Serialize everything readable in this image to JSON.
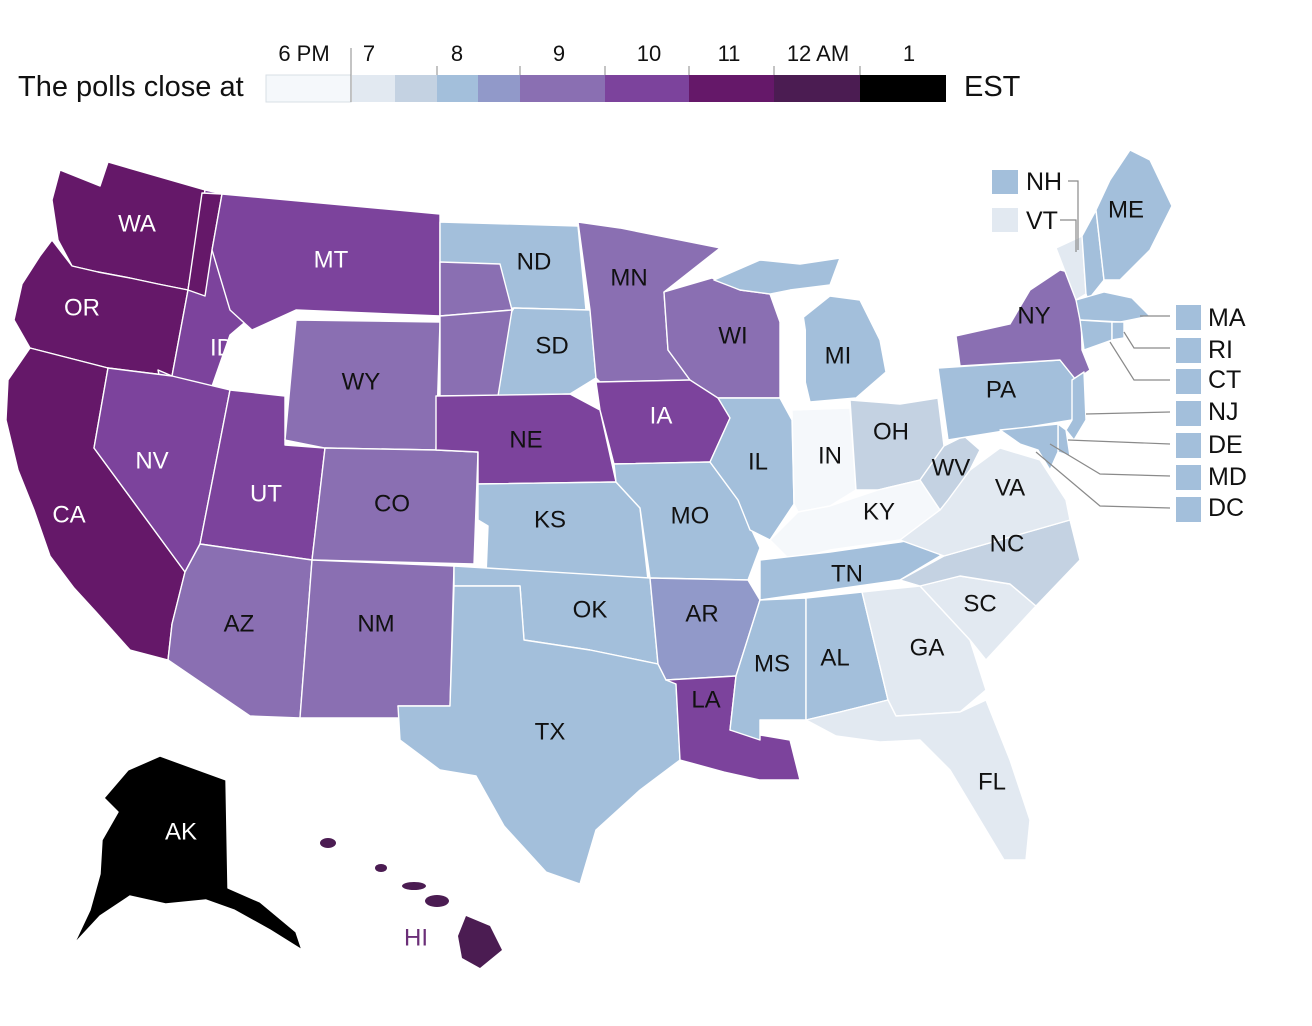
{
  "legend": {
    "title": "The polls close at",
    "unit": "EST",
    "ticks": [
      "6 PM",
      "7",
      "8",
      "9",
      "10",
      "11",
      "12 AM",
      "1"
    ],
    "colors": [
      "#f5f8fb",
      "#e2e9f1",
      "#c4d2e2",
      "#a3bfdb",
      "#9199c9",
      "#8a6fb2",
      "#7c439c",
      "#651869",
      "#4b1c52",
      "#000000"
    ]
  },
  "colors": {
    "c7": "#e2e9f1",
    "c7b": "#c4d2e2",
    "c8": "#a3bfdb",
    "c8b": "#9199c9",
    "c9": "#8a6fb2",
    "c10": "#7c439c",
    "c11": "#651869",
    "c12": "#4b1c52",
    "c1": "#000000",
    "c6": "#f5f8fb"
  },
  "states": {
    "WA": "WA",
    "OR": "OR",
    "CA": "CA",
    "ID": "ID",
    "MT": "MT",
    "NV": "NV",
    "UT": "UT",
    "AZ": "AZ",
    "WY": "WY",
    "CO": "CO",
    "NM": "NM",
    "ND": "ND",
    "SD": "SD",
    "NE": "NE",
    "KS": "KS",
    "OK": "OK",
    "TX": "TX",
    "MN": "MN",
    "IA": "IA",
    "MO": "MO",
    "AR": "AR",
    "LA": "LA",
    "WI": "WI",
    "IL": "IL",
    "MS": "MS",
    "MI": "MI",
    "IN": "IN",
    "OH": "OH",
    "KY": "KY",
    "TN": "TN",
    "AL": "AL",
    "GA": "GA",
    "FL": "FL",
    "SC": "SC",
    "NC": "NC",
    "VA": "VA",
    "WV": "WV",
    "PA": "PA",
    "NY": "NY",
    "ME": "ME",
    "AK": "AK",
    "HI": "HI"
  },
  "small_states": {
    "NH": "NH",
    "VT": "VT",
    "MA": "MA",
    "RI": "RI",
    "CT": "CT",
    "NJ": "NJ",
    "DE": "DE",
    "MD": "MD",
    "DC": "DC"
  }
}
